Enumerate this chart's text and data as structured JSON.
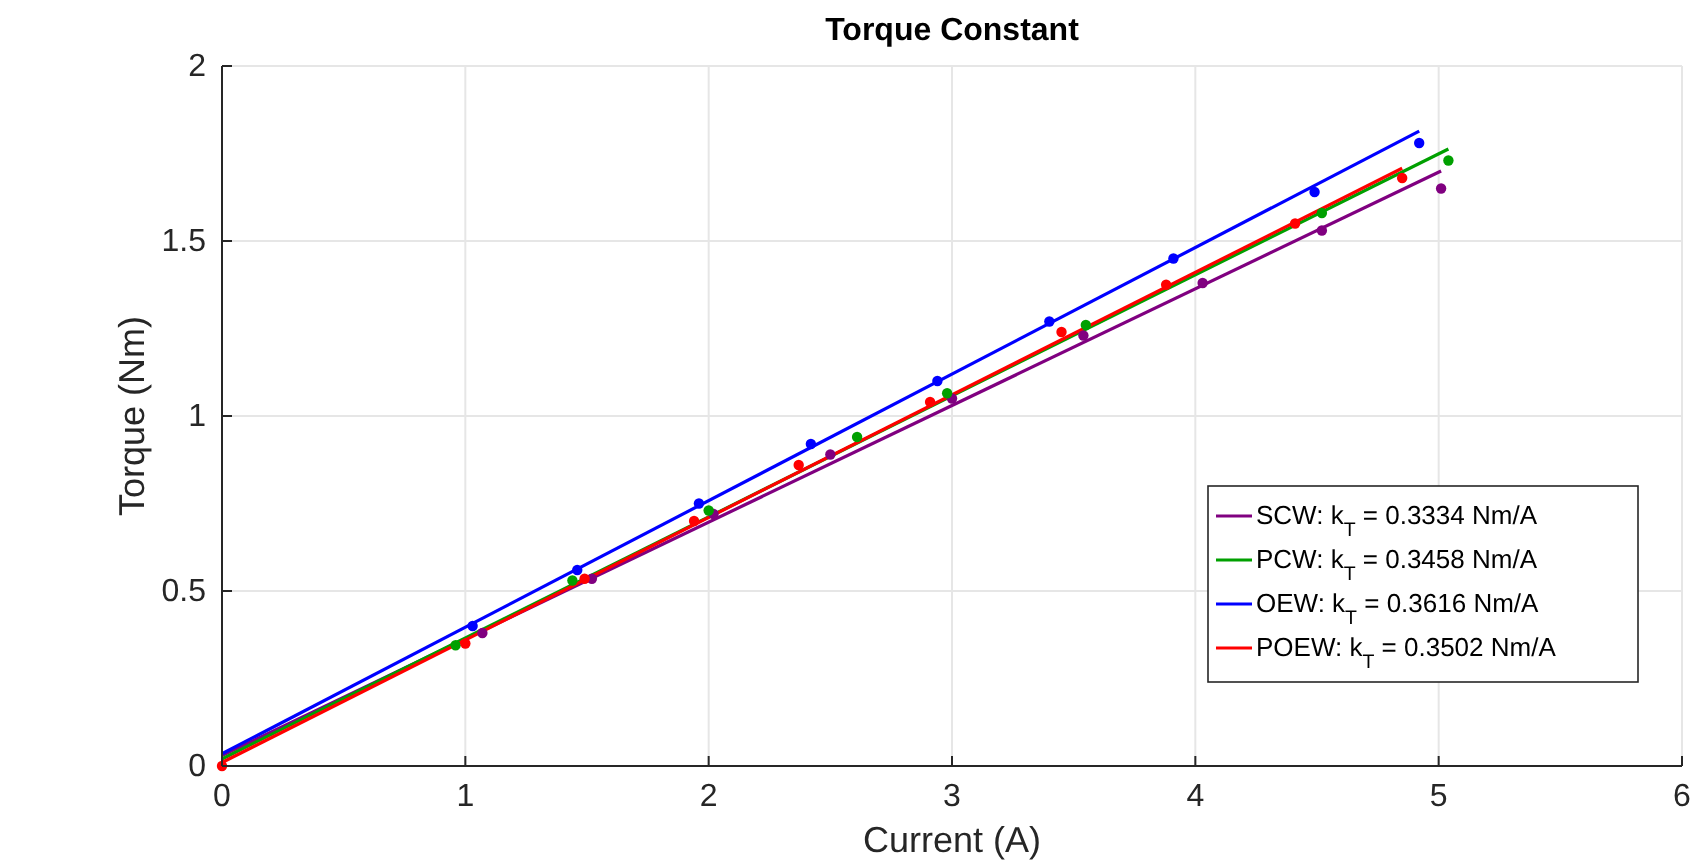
{
  "chart_data": {
    "type": "scatter",
    "title": "Torque Constant",
    "xlabel": "Current (A)",
    "ylabel": "Torque (Nm)",
    "xlim": [
      0,
      6
    ],
    "xticks": [
      0,
      1,
      2,
      3,
      4,
      5,
      6
    ],
    "ylim": [
      0,
      2
    ],
    "yticks": [
      0,
      0.5,
      1,
      1.5,
      2
    ],
    "grid": true,
    "legend": "bottom right",
    "series": [
      {
        "color": "#800080",
        "marker": "circle",
        "x": [
          1.07,
          1.52,
          2.02,
          2.5,
          3.0,
          3.54,
          4.03,
          4.52,
          5.01
        ],
        "values": [
          0.38,
          0.535,
          0.72,
          0.89,
          1.05,
          1.23,
          1.38,
          1.53,
          1.65
        ]
      },
      {
        "color": "#00a000",
        "marker": "circle",
        "x": [
          0.96,
          1.44,
          2.0,
          2.61,
          2.98,
          3.55,
          4.52,
          5.04
        ],
        "values": [
          0.345,
          0.53,
          0.73,
          0.94,
          1.065,
          1.26,
          1.58,
          1.73
        ]
      },
      {
        "color": "#0000ff",
        "marker": "circle",
        "x": [
          1.03,
          1.46,
          1.96,
          2.42,
          2.94,
          3.4,
          3.91,
          4.49,
          4.92
        ],
        "values": [
          0.4,
          0.56,
          0.75,
          0.92,
          1.1,
          1.27,
          1.45,
          1.64,
          1.78
        ]
      },
      {
        "color": "#ff0000",
        "marker": "circle",
        "x": [
          0,
          1.0,
          1.49,
          1.94,
          2.37,
          2.91,
          3.45,
          3.88,
          4.41,
          4.85
        ],
        "values": [
          0,
          0.35,
          0.535,
          0.7,
          0.86,
          1.04,
          1.24,
          1.375,
          1.55,
          1.68
        ]
      },
      {
        "type": "line",
        "name": "SCW: k$_{T}$ = 0.3334 Nm/A",
        "color": "#800080",
        "marker": "none",
        "x": [
          0,
          5.01
        ],
        "values": [
          0.03,
          1.7
        ]
      },
      {
        "type": "line",
        "name": "PCW: k$_{T}$ = 0.3458 Nm/A",
        "color": "#00a000",
        "marker": "none",
        "x": [
          0,
          5.04
        ],
        "values": [
          0.02,
          1.763
        ]
      },
      {
        "type": "line",
        "name": "OEW: k$_{T}$ = 0.3616 Nm/A",
        "color": "#0000ff",
        "marker": "none",
        "x": [
          0,
          4.92
        ],
        "values": [
          0.035,
          1.814
        ]
      },
      {
        "type": "line",
        "name": "POEW: k$_{T}$ = 0.3502 Nm/A",
        "color": "#ff0000",
        "marker": "none",
        "x": [
          0,
          4.85
        ],
        "values": [
          0.01,
          1.708
        ]
      }
    ]
  }
}
